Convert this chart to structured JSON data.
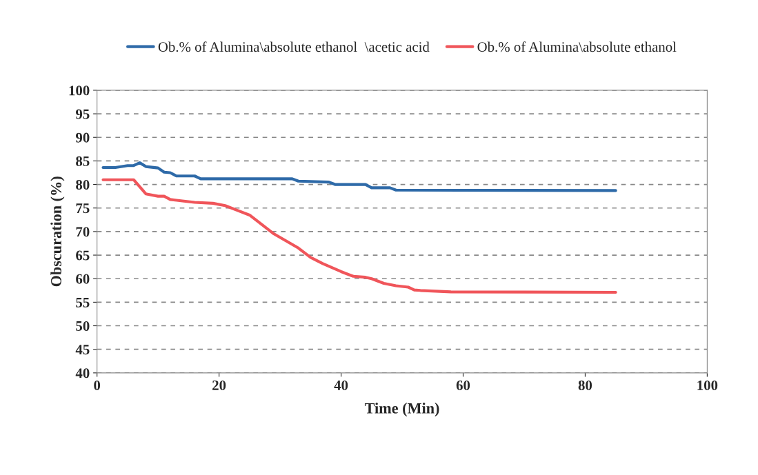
{
  "chart_data": {
    "type": "line",
    "xlabel": "Time (Min)",
    "ylabel": "Obscuration (%)",
    "xlim": [
      0,
      100
    ],
    "xticks": [
      0,
      20,
      40,
      60,
      80,
      100
    ],
    "ylim": [
      40,
      100
    ],
    "yticks": [
      40,
      45,
      50,
      55,
      60,
      65,
      70,
      75,
      80,
      85,
      90,
      95,
      100
    ],
    "grid": "y",
    "legend": "top",
    "marker": "none",
    "line_style": "solid",
    "series": [
      {
        "name": "Ob.% of Alumina\\absolute ethanol  \\acetic acid",
        "color": "#2e6aa8",
        "x": [
          1,
          3,
          5,
          6,
          7,
          8,
          10,
          11,
          12,
          13,
          16,
          17,
          32,
          33,
          38,
          39,
          44,
          45,
          48,
          49,
          85
        ],
        "values": [
          83.6,
          83.6,
          84,
          84,
          84.6,
          83.8,
          83.5,
          82.6,
          82.5,
          81.8,
          81.8,
          81.2,
          81.2,
          80.7,
          80.5,
          80,
          80,
          79.3,
          79.3,
          78.8,
          78.7
        ]
      },
      {
        "name": "Ob.% of Alumina\\absolute ethanol",
        "color": "#f0555a",
        "x": [
          1,
          6,
          7,
          8,
          10,
          11,
          12,
          14,
          16,
          19,
          21,
          23,
          25,
          27,
          29,
          31,
          33,
          35,
          37,
          40,
          42,
          44,
          45,
          47,
          49,
          51,
          52,
          53,
          58,
          85
        ],
        "values": [
          81,
          81,
          79.5,
          78,
          77.5,
          77.5,
          76.8,
          76.5,
          76.2,
          76,
          75.5,
          74.5,
          73.5,
          71.5,
          69.5,
          68,
          66.5,
          64.5,
          63.2,
          61.5,
          60.5,
          60.3,
          60,
          59,
          58.5,
          58.2,
          57.6,
          57.5,
          57.2,
          57.1
        ]
      }
    ]
  }
}
